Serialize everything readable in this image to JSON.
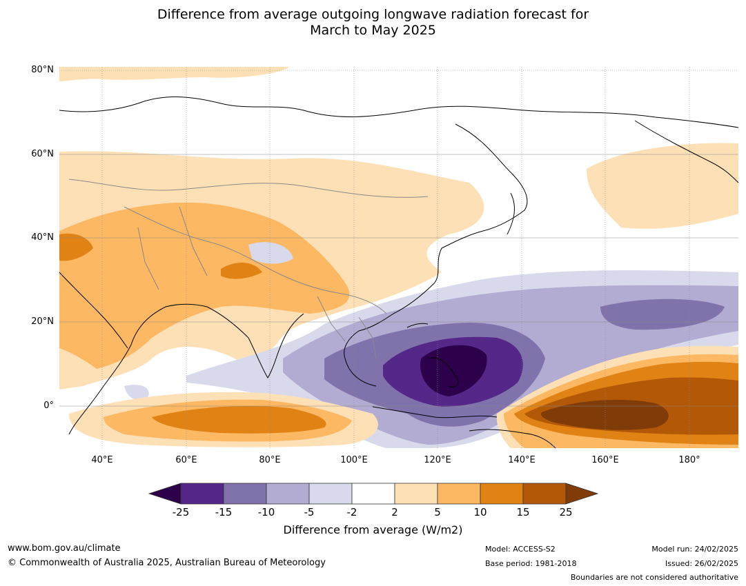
{
  "title_line1": "Difference from average outgoing longwave radiation forecast for",
  "title_line2": "March to May 2025",
  "lat_labels": [
    "80°N",
    "60°N",
    "40°N",
    "20°N",
    "0°"
  ],
  "lon_labels": [
    "40°E",
    "60°E",
    "80°E",
    "100°E",
    "120°E",
    "140°E",
    "160°E",
    "180°"
  ],
  "colorbar": {
    "ticks": [
      "-25",
      "-15",
      "-10",
      "-5",
      "-2",
      "2",
      "5",
      "10",
      "15",
      "25"
    ],
    "colors": [
      "#2d004b",
      "#542788",
      "#8073ac",
      "#b2abd2",
      "#d8daeb",
      "#ffffff",
      "#fee0b6",
      "#fdb863",
      "#e08214",
      "#b35806",
      "#7f3b08"
    ],
    "label": "Difference from average (W/m2)"
  },
  "footer": {
    "site": "www.bom.gov.au/climate",
    "copyright": "© Commonwealth of Australia 2025, Australian Bureau of Meteorology",
    "model": "Model: ACCESS-S2",
    "base_period": "Base period: 1981-2018",
    "model_run": "Model run: 24/02/2025",
    "issued": "Issued: 26/02/2025",
    "disclaimer": "Boundaries are not considered authoritative"
  }
}
